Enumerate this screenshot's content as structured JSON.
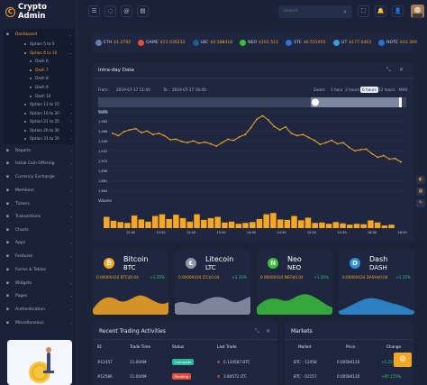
{
  "brand": {
    "title": "Crypto Admin",
    "logo_glyph": "C"
  },
  "sidebar": {
    "items": [
      {
        "label": "Dashboard",
        "icon": "grid-icon"
      },
      {
        "label": "Option 5 to 5",
        "sub": 1
      },
      {
        "label": "Option 6 to 10",
        "sub": 1,
        "active": true
      },
      {
        "label": "Dash 6",
        "sub": 2
      },
      {
        "label": "Dash 7",
        "sub": 2,
        "active": true
      },
      {
        "label": "Dash 8",
        "sub": 2
      },
      {
        "label": "Dash 9",
        "sub": 2
      },
      {
        "label": "Dash 10",
        "sub": 2
      },
      {
        "label": "Option 11 to 15",
        "sub": 1
      },
      {
        "label": "Option 16 to 20",
        "sub": 1
      },
      {
        "label": "Option 21 to 25",
        "sub": 1
      },
      {
        "label": "Option 26 to 30",
        "sub": 1
      },
      {
        "label": "Option 31 to 35",
        "sub": 1
      },
      {
        "label": "Reports",
        "icon": "report-icon"
      },
      {
        "label": "Initial Coin Offering",
        "icon": "coin-icon"
      },
      {
        "label": "Currency Exchange",
        "icon": "exchange-icon"
      },
      {
        "label": "Members",
        "icon": "members-icon"
      },
      {
        "label": "Tickers",
        "icon": "ticker-icon"
      },
      {
        "label": "Transactions",
        "icon": "transactions-icon"
      },
      {
        "label": "Charts",
        "icon": "chart-icon"
      },
      {
        "label": "Apps",
        "icon": "apps-icon"
      },
      {
        "label": "Features",
        "icon": "features-icon"
      },
      {
        "label": "Forms & Tables",
        "icon": "forms-icon"
      },
      {
        "label": "Widgets",
        "icon": "widgets-icon"
      },
      {
        "label": "Pages",
        "icon": "pages-icon"
      },
      {
        "label": "Authentication",
        "icon": "auth-icon"
      },
      {
        "label": "Miscellaneous",
        "icon": "misc-icon"
      }
    ]
  },
  "topbar": {
    "search_placeholder": "Search",
    "icons": [
      "menu-icon",
      "chat-icon",
      "mail-icon",
      "clipboard-icon",
      "fullscreen-icon",
      "bell-icon",
      "user-icon"
    ]
  },
  "ticker": [
    {
      "sym": "ETH",
      "val": "$1.2792",
      "color": "#6b7bb0"
    },
    {
      "sym": "GAME",
      "val": "$11.039232",
      "color": "#e74c3c"
    },
    {
      "sym": "LBC",
      "val": "$0.588418",
      "color": "#1e5c8c"
    },
    {
      "sym": "NEO",
      "val": "$161.511",
      "color": "#3bbf3b"
    },
    {
      "sym": "STE",
      "val": "$0.551955",
      "color": "#2f6fd1"
    },
    {
      "sym": "LIT",
      "val": "$177.0463",
      "color": "#3a9bd8"
    },
    {
      "sym": "NOTE",
      "val": "$13.399",
      "color": "#2f6fd1"
    }
  ],
  "intraday": {
    "title": "Intra-day Data",
    "from_label": "From:",
    "from_date": "2019-07-17 11:40",
    "to_label": "To:",
    "to_date": "2019-07-17 16:40",
    "zoom_label": "Zoom:",
    "zoom_options": [
      "1 hour",
      "3 hours",
      "6 hours",
      "12 hours",
      "MAX"
    ],
    "zoom_selected": "6 hours",
    "value_label": "Value",
    "volume_label": "Volume"
  },
  "chart_data": {
    "type": "line",
    "ylabel": "Value",
    "y_ticks": [
      "2,000",
      "1,983",
      "1,966",
      "1,949",
      "1,932",
      "1,915",
      "1,898",
      "1,881",
      "1,864"
    ],
    "ylim": [
      1860,
      2005
    ],
    "x_ticks": [
      "12:00",
      "12:30",
      "13:00",
      "13:30",
      "14:00",
      "14:30",
      "15:00",
      "15:30",
      "16:00",
      "16:30"
    ],
    "price": [
      1962,
      1958,
      1965,
      1968,
      1970,
      1963,
      1966,
      1960,
      1962,
      1958,
      1951,
      1952,
      1948,
      1946,
      1949,
      1945,
      1947,
      1944,
      1940,
      1946,
      1952,
      1950,
      1956,
      1960,
      1972,
      1986,
      1992,
      1985,
      1974,
      1968,
      1973,
      1962,
      1958,
      1960,
      1955,
      1950,
      1943,
      1946,
      1950,
      1944,
      1946,
      1938,
      1932,
      1934,
      1935,
      1927,
      1921,
      1924,
      1918,
      1919,
      1913
    ],
    "volume_series_name": "Volume",
    "volume_ylim": [
      0,
      100
    ],
    "volume": [
      52,
      34,
      28,
      24,
      58,
      40,
      30,
      56,
      64,
      42,
      62,
      46,
      30,
      64,
      38,
      46,
      52,
      26,
      30,
      20,
      24,
      28,
      42,
      64,
      70,
      40,
      38,
      56,
      36,
      48,
      24,
      26,
      20,
      28,
      22,
      16,
      20,
      18,
      36,
      26,
      12,
      16
    ]
  },
  "coins": [
    {
      "name": "Bitcoin",
      "sym": "BTC",
      "price": "0.00000434 BTC$0.04",
      "chg": "+1.35%",
      "color": "#f5a623",
      "icon": "bitcoin-icon",
      "glyph": "₿"
    },
    {
      "name": "Litecoin",
      "sym": "LTC",
      "price": "0.00000434 LTC$0.04",
      "chg": "+1.35%",
      "color": "#8d97ad",
      "icon": "litecoin-icon",
      "glyph": "Ł"
    },
    {
      "name": "Neo",
      "sym": "NEO",
      "price": "0.00000434 NEO$0.04",
      "chg": "+1.35%",
      "color": "#3bbf3b",
      "icon": "neo-icon",
      "glyph": "N"
    },
    {
      "name": "Dash",
      "sym": "DASH",
      "price": "0.00000434 DASH$0.04",
      "chg": "+1.35%",
      "color": "#2f8fd8",
      "icon": "dash-icon",
      "glyph": "D"
    }
  ],
  "trading": {
    "title": "Recent Trading Activities",
    "headers": [
      "ID",
      "Trade Time",
      "Status",
      "Last Trade"
    ],
    "rows": [
      {
        "id": "#12457",
        "time": "11.00AM",
        "status": "Complete",
        "status_color": "#26b99a",
        "last": "0.134587 BTC"
      },
      {
        "id": "#12586",
        "time": "11.00AM",
        "status": "Pending",
        "status_color": "#e74c3c",
        "last": "3.84572 LTC"
      }
    ]
  },
  "markets": {
    "title": "Markets",
    "headers": [
      "Market",
      "Price",
      "Change"
    ],
    "rows": [
      {
        "market": "BTC - 12458",
        "price": "0.00584120",
        "change": "+5.25%"
      },
      {
        "market": "BTC - 02157",
        "price": "0.00584120",
        "change": "+05.155%"
      }
    ]
  }
}
